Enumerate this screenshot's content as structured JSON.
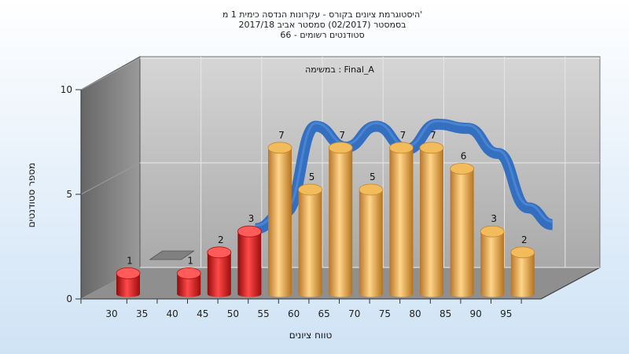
{
  "chart_data": {
    "type": "bar",
    "title_lines": [
      "היסטוגרמת ציונים בקורס - עקרונות הנדסה כימית 1 מ'",
      "בסמסטר  (02/2017)  סמסטר אביב 2017/18",
      "סטודנטים רשומים - 66"
    ],
    "annotation": "במשימה : Final_A",
    "xlabel": "טווח ציונים",
    "ylabel": "מספר סטודנטים",
    "x_ticks": [
      "30",
      "35",
      "40",
      "45",
      "50",
      "55",
      "60",
      "65",
      "70",
      "75",
      "80",
      "85",
      "90",
      "95"
    ],
    "y_ticks": [
      "0",
      "5",
      "10"
    ],
    "ylim": [
      0,
      10
    ],
    "bars": [
      {
        "label": "30",
        "value": 1,
        "color": "red"
      },
      {
        "label": "40",
        "value": 1,
        "color": "red"
      },
      {
        "label": "45",
        "value": 2,
        "color": "red"
      },
      {
        "label": "50",
        "value": 3,
        "color": "red"
      },
      {
        "label": "55",
        "value": 7,
        "color": "orange"
      },
      {
        "label": "60",
        "value": 5,
        "color": "orange"
      },
      {
        "label": "65",
        "value": 7,
        "color": "orange"
      },
      {
        "label": "70",
        "value": 5,
        "color": "orange"
      },
      {
        "label": "75",
        "value": 7,
        "color": "orange"
      },
      {
        "label": "80",
        "value": 7,
        "color": "orange"
      },
      {
        "label": "85",
        "value": 6,
        "color": "orange"
      },
      {
        "label": "90",
        "value": 3,
        "color": "orange"
      },
      {
        "label": "95",
        "value": 2,
        "color": "orange"
      }
    ],
    "trend": [
      {
        "x": 50,
        "y": 2.6
      },
      {
        "x": 55,
        "y": 3.4
      },
      {
        "x": 60,
        "y": 7.5
      },
      {
        "x": 65,
        "y": 6.5
      },
      {
        "x": 70,
        "y": 7.5
      },
      {
        "x": 75,
        "y": 6.4
      },
      {
        "x": 80,
        "y": 7.6
      },
      {
        "x": 85,
        "y": 7.4
      },
      {
        "x": 90,
        "y": 6.2
      },
      {
        "x": 95,
        "y": 3.6
      },
      {
        "x": 99,
        "y": 2.8
      }
    ],
    "colors": {
      "red": "#e01515",
      "orange": "#e8a23a",
      "trend": "#2d6cc0",
      "wall_left": "#7a7a7a",
      "wall_back": "#bdbdbd",
      "floor": "#8e8e8e",
      "flat_bar": "#808080"
    },
    "grid": true
  }
}
